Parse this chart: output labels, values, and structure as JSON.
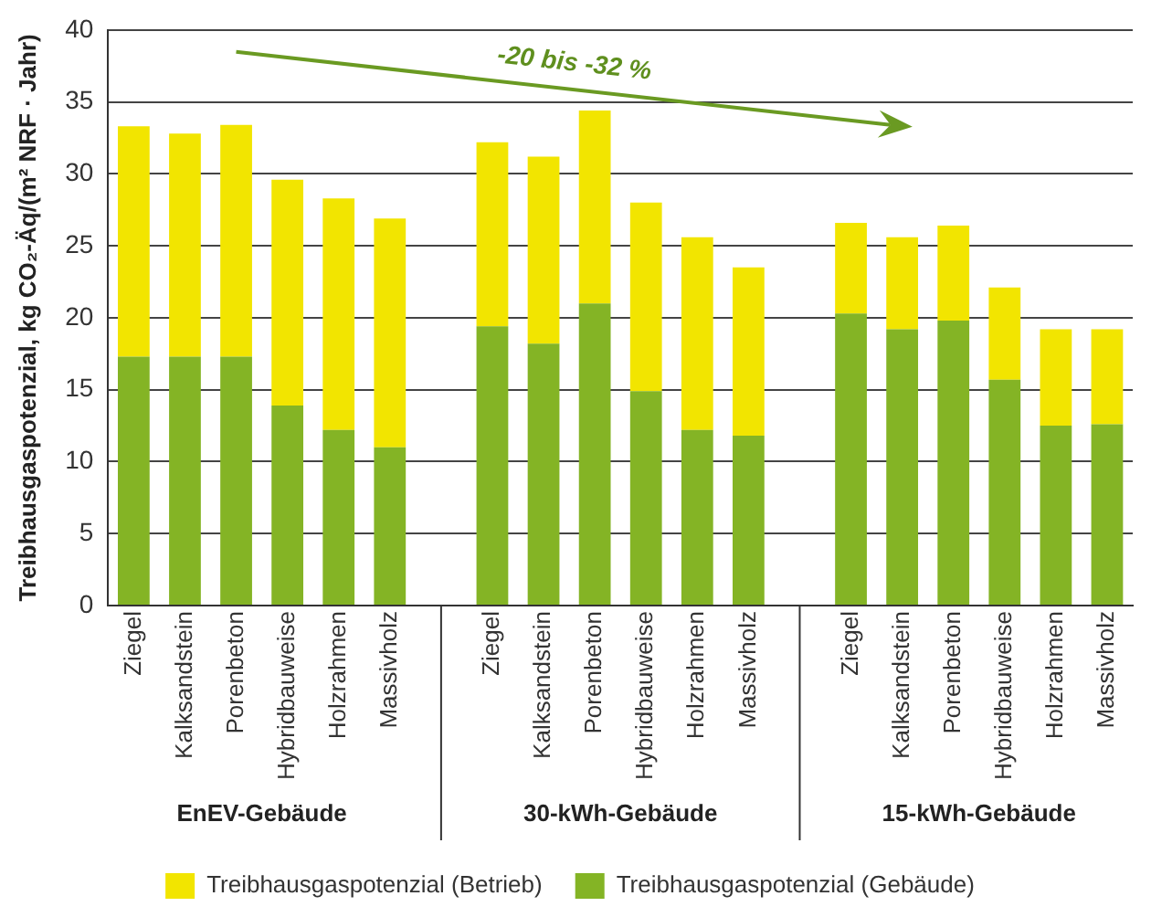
{
  "chart_data": {
    "type": "bar",
    "stacked": true,
    "ylabel": "Treibhausgaspotenzial, kg CO₂-Äq/(m² NRF · Jahr)",
    "categories": [
      "Ziegel",
      "Kalksandstein",
      "Porenbeton",
      "Hybridbauweise",
      "Holzrahmen",
      "Massivholz",
      null,
      "Ziegel",
      "Kalksandstein",
      "Porenbeton",
      "Hybridbauweise",
      "Holzrahmen",
      "Massivholz",
      null,
      "Ziegel",
      "Kalksandstein",
      "Porenbeton",
      "Hybridbauweise",
      "Holzrahmen",
      "Massivholz"
    ],
    "series": [
      {
        "name": "Treibhausgaspotenzial (Gebäude)",
        "color": "#84b425",
        "values": [
          17.3,
          17.3,
          17.3,
          13.9,
          12.2,
          11.0,
          null,
          19.4,
          18.2,
          21.0,
          14.9,
          12.2,
          11.8,
          null,
          20.3,
          19.2,
          19.8,
          15.7,
          12.5,
          12.6
        ]
      },
      {
        "name": "Treibhausgaspotenzial (Betrieb)",
        "color": "#f2e500",
        "values": [
          16.0,
          15.5,
          16.1,
          15.7,
          16.1,
          15.9,
          null,
          12.8,
          13.0,
          13.4,
          13.1,
          13.4,
          11.7,
          null,
          6.3,
          6.4,
          6.6,
          6.4,
          6.7,
          6.6
        ]
      }
    ],
    "ylim": [
      0,
      40
    ],
    "yticks": [
      0,
      5,
      10,
      15,
      20,
      25,
      30,
      35,
      40
    ],
    "grid": "y",
    "legend": "bottom",
    "annotations": [
      "-20 bis -32 %",
      "EnEV-Gebäude",
      "30-kWh-Gebäude",
      "15-kWh-Gebäude"
    ]
  }
}
